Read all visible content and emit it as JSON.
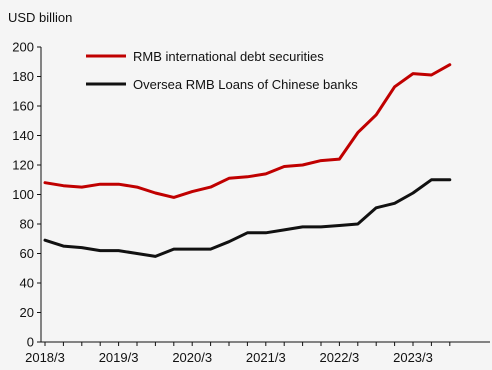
{
  "chart_data": {
    "type": "line",
    "y_unit_label": "USD billion",
    "x": [
      "2018/3",
      "2018/6",
      "2018/9",
      "2018/12",
      "2019/3",
      "2019/6",
      "2019/9",
      "2019/12",
      "2020/3",
      "2020/6",
      "2020/9",
      "2020/12",
      "2021/3",
      "2021/6",
      "2021/9",
      "2021/12",
      "2022/3",
      "2022/6",
      "2022/9",
      "2022/12",
      "2023/3",
      "2023/6",
      "2023/9"
    ],
    "x_tick_labels": [
      "2018/3",
      "2019/3",
      "2020/3",
      "2021/3",
      "2022/3",
      "2023/3"
    ],
    "ylim": [
      0,
      200
    ],
    "y_ticks": [
      0,
      20,
      40,
      60,
      80,
      100,
      120,
      140,
      160,
      180,
      200
    ],
    "grid": false,
    "legend_position": "top-left",
    "series": [
      {
        "name": "RMB international debt securities",
        "color": "#c00000",
        "values": [
          108,
          106,
          105,
          107,
          107,
          105,
          101,
          98,
          102,
          105,
          111,
          112,
          114,
          119,
          120,
          123,
          124,
          142,
          154,
          173,
          182,
          181,
          188
        ]
      },
      {
        "name": "Oversea RMB Loans of Chinese banks",
        "color": "#111111",
        "values": [
          69,
          65,
          64,
          62,
          62,
          60,
          58,
          63,
          63,
          63,
          68,
          74,
          74,
          76,
          78,
          78,
          79,
          80,
          91,
          94,
          101,
          110,
          110
        ]
      }
    ]
  }
}
